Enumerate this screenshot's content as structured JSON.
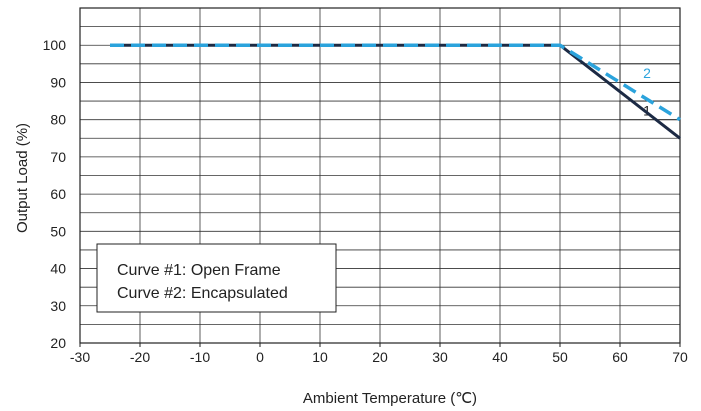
{
  "chart_data": {
    "type": "line",
    "xlabel": "Ambient Temperature (℃)",
    "ylabel": "Output Load (%)",
    "xlim": [
      -30,
      70
    ],
    "ylim": [
      20,
      110
    ],
    "x_ticks": [
      -30,
      -20,
      -10,
      0,
      10,
      20,
      30,
      40,
      50,
      60,
      70
    ],
    "y_ticks": [
      20,
      30,
      40,
      50,
      60,
      70,
      80,
      90,
      100
    ],
    "grid": true,
    "series": [
      {
        "name": "1",
        "style": "solid",
        "color": "#1c2a44",
        "points": [
          [
            -25,
            100
          ],
          [
            50,
            100
          ],
          [
            70,
            75
          ]
        ]
      },
      {
        "name": "2",
        "style": "dashed",
        "color": "#2ba3dc",
        "points": [
          [
            -25,
            100
          ],
          [
            50,
            100
          ],
          [
            70,
            80
          ]
        ]
      }
    ],
    "legend": {
      "placement": "bottom-left",
      "lines": [
        "Curve #1: Open Frame",
        "Curve #2: Encapsulated"
      ]
    }
  }
}
